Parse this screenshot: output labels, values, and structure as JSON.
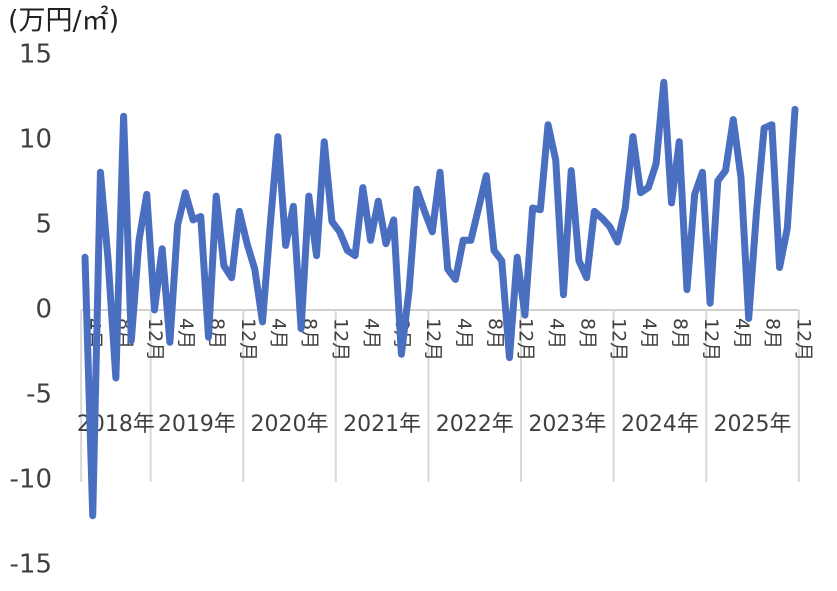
{
  "chart_data": {
    "type": "line",
    "y_axis_label": "(万円/㎡)",
    "categories": [
      "4月",
      null,
      null,
      null,
      "8月",
      null,
      null,
      null,
      "12月",
      null,
      null,
      null,
      "4月",
      null,
      null,
      null,
      "8月",
      null,
      null,
      null,
      "12月",
      null,
      null,
      null,
      "4月",
      null,
      null,
      null,
      "8月",
      null,
      null,
      null,
      "12月",
      null,
      null,
      null,
      "4月",
      null,
      null,
      null,
      "8月",
      null,
      null,
      null,
      "12月",
      null,
      null,
      null,
      "4月",
      null,
      null,
      null,
      "8月",
      null,
      null,
      null,
      "12月",
      null,
      null,
      null,
      "4月",
      null,
      null,
      null,
      "8月",
      null,
      null,
      null,
      "12月",
      null,
      null,
      null,
      "4月",
      null,
      null,
      null,
      "8月",
      null,
      null,
      null,
      "12月",
      null,
      null,
      null,
      "4月",
      null,
      null,
      null,
      "8月",
      null,
      null,
      null,
      "12月"
    ],
    "year_labels": [
      "2018年",
      "2019年",
      "2020年",
      "2021年",
      "2022年",
      "2023年",
      "2024年",
      "2025年"
    ],
    "values": [
      3.1,
      -12.1,
      8.1,
      2.9,
      -4.0,
      11.4,
      -1.8,
      4.1,
      6.8,
      0,
      3.6,
      -1.9,
      5.0,
      6.9,
      5.3,
      5.5,
      -1.6,
      6.7,
      2.6,
      1.9,
      5.8,
      3.9,
      2.4,
      -0.7,
      5.0,
      10.2,
      3.8,
      6.1,
      -1.1,
      6.7,
      3.2,
      9.9,
      5.2,
      4.6,
      3.5,
      3.2,
      7.2,
      4.1,
      6.4,
      3.9,
      5.3,
      -2.6,
      1.2,
      7.1,
      5.8,
      4.6,
      8.1,
      2.4,
      1.8,
      4.1,
      4.1,
      6.0,
      7.9,
      3.5,
      2.9,
      -2.8,
      3.1,
      -0.3,
      6.0,
      5.9,
      10.9,
      8.8,
      0.9,
      8.2,
      2.9,
      1.9,
      5.8,
      5.4,
      4.9,
      4.0,
      6.0,
      10.2,
      6.9,
      7.2,
      8.6,
      13.4,
      6.3,
      9.9,
      1.2,
      6.8,
      8.1,
      0.4,
      7.6,
      8.2,
      11.2,
      7.8,
      -0.5,
      5.7,
      10.7,
      10.9,
      2.5,
      4.8,
      11.8
    ],
    "color": "#4a6fc1",
    "ylim": [
      -15,
      15
    ],
    "yticks": [
      -15,
      -10,
      -5,
      0,
      5,
      10,
      15
    ],
    "grid": false
  }
}
